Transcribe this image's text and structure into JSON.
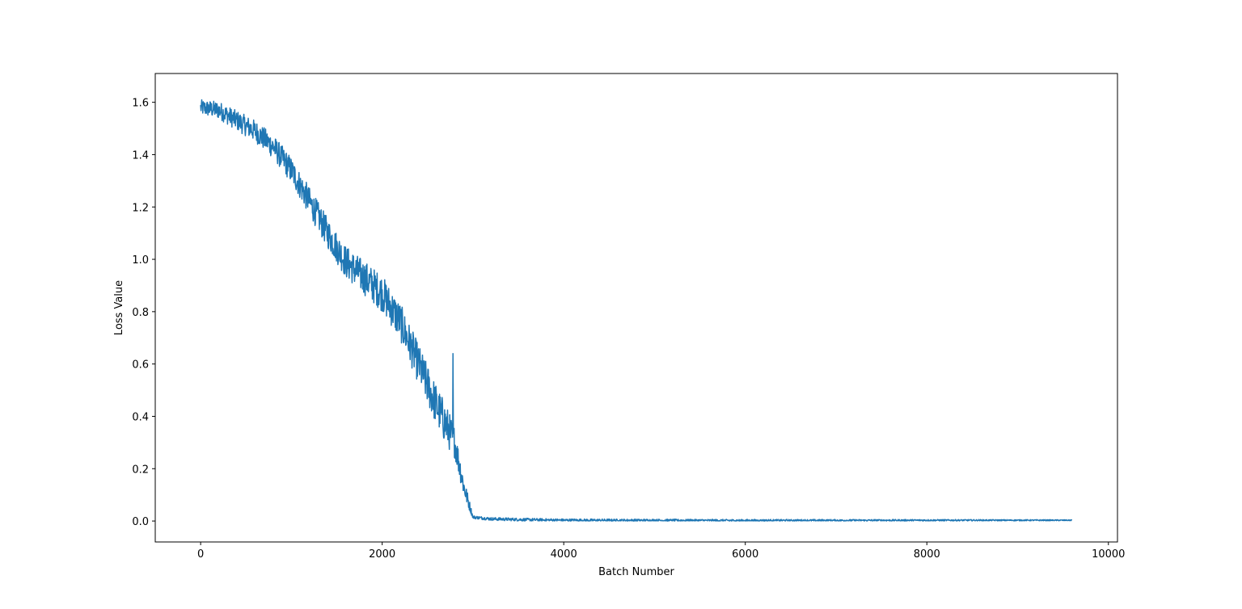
{
  "chart_data": {
    "type": "line",
    "title": "",
    "xlabel": "Batch Number",
    "ylabel": "Loss Value",
    "xlim": [
      -500,
      10100
    ],
    "ylim": [
      -0.08,
      1.71
    ],
    "x_ticks": [
      0,
      2000,
      4000,
      6000,
      8000,
      10000
    ],
    "y_ticks": [
      0.0,
      0.2,
      0.4,
      0.6,
      0.8,
      1.0,
      1.2,
      1.4,
      1.6
    ],
    "x_tick_labels": [
      "0",
      "2000",
      "4000",
      "6000",
      "8000",
      "10000"
    ],
    "y_tick_labels": [
      "0.0",
      "0.2",
      "0.4",
      "0.6",
      "0.8",
      "1.0",
      "1.2",
      "1.4",
      "1.6"
    ],
    "grid": false,
    "legend": "none",
    "series": [
      {
        "color": "#1f77b4",
        "x_range": [
          0,
          9600
        ],
        "trend_points": [
          {
            "x": 0,
            "y": 1.58
          },
          {
            "x": 200,
            "y": 1.57
          },
          {
            "x": 400,
            "y": 1.53
          },
          {
            "x": 600,
            "y": 1.49
          },
          {
            "x": 800,
            "y": 1.43
          },
          {
            "x": 1000,
            "y": 1.34
          },
          {
            "x": 1200,
            "y": 1.22
          },
          {
            "x": 1400,
            "y": 1.1
          },
          {
            "x": 1600,
            "y": 0.99
          },
          {
            "x": 1800,
            "y": 0.93
          },
          {
            "x": 2000,
            "y": 0.87
          },
          {
            "x": 2200,
            "y": 0.76
          },
          {
            "x": 2400,
            "y": 0.6
          },
          {
            "x": 2600,
            "y": 0.44
          },
          {
            "x": 2800,
            "y": 0.3
          },
          {
            "x": 2900,
            "y": 0.13
          },
          {
            "x": 3000,
            "y": 0.015
          },
          {
            "x": 3200,
            "y": 0.008
          },
          {
            "x": 3600,
            "y": 0.005
          },
          {
            "x": 4000,
            "y": 0.003
          },
          {
            "x": 6000,
            "y": 0.002
          },
          {
            "x": 8000,
            "y": 0.003
          },
          {
            "x": 9600,
            "y": 0.003
          }
        ],
        "spikes": [
          {
            "x": 90,
            "y": 1.63
          },
          {
            "x": 2290,
            "y": 0.89
          },
          {
            "x": 2780,
            "y": 0.64
          }
        ],
        "noise_band": [
          {
            "x": 0,
            "amp": 0.03
          },
          {
            "x": 1000,
            "amp": 0.05
          },
          {
            "x": 2000,
            "amp": 0.07
          },
          {
            "x": 2700,
            "amp": 0.08
          },
          {
            "x": 2900,
            "amp": 0.04
          },
          {
            "x": 3000,
            "amp": 0.006
          },
          {
            "x": 9600,
            "amp": 0.002
          }
        ]
      }
    ]
  }
}
